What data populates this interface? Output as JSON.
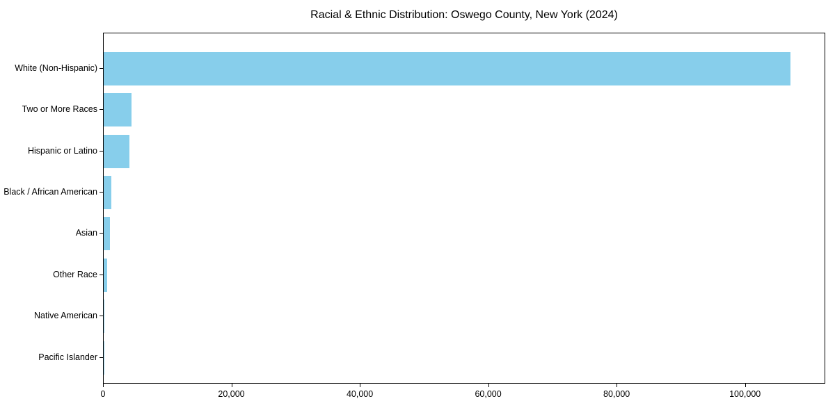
{
  "chart_data": {
    "type": "bar",
    "orientation": "horizontal",
    "title": "Racial & Ethnic Distribution: Oswego County, New York (2024)",
    "categories": [
      "White (Non-Hispanic)",
      "Two or More Races",
      "Hispanic or Latino",
      "Black / African American",
      "Asian",
      "Other Race",
      "Native American",
      "Pacific Islander"
    ],
    "values": [
      107000,
      4300,
      4000,
      1150,
      1000,
      520,
      100,
      25
    ],
    "xlabel": "",
    "ylabel": "",
    "xlim": [
      0,
      112500
    ],
    "x_ticks": [
      {
        "value": 0,
        "label": "0"
      },
      {
        "value": 20000,
        "label": "20,000"
      },
      {
        "value": 40000,
        "label": "40,000"
      },
      {
        "value": 60000,
        "label": "60,000"
      },
      {
        "value": 80000,
        "label": "80,000"
      },
      {
        "value": 100000,
        "label": "100,000"
      }
    ],
    "bar_color": "#87CEEB",
    "frame_color": "#000000",
    "background_color": "#FFFFFF",
    "grid": false,
    "legend_position": "none"
  }
}
